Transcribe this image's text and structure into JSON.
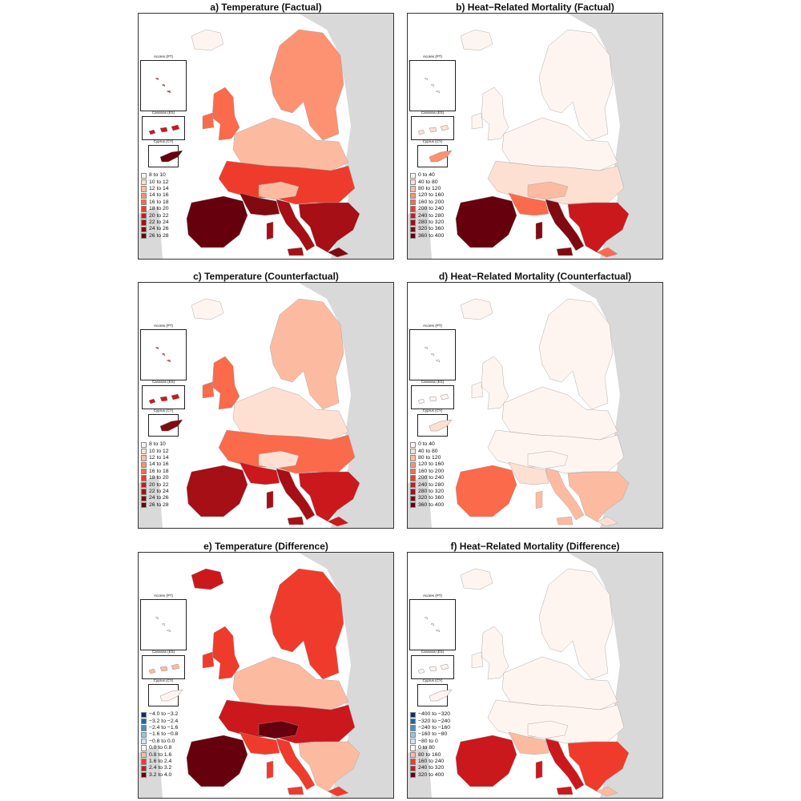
{
  "insets": {
    "azores": "Acores (PT)",
    "canarias": "Canarias (ES)",
    "cyprus": "Cyprus (CY)"
  },
  "legends": {
    "temperature": [
      "8 to 10",
      "10 to 12",
      "12 to 14",
      "14 to 16",
      "16 to 18",
      "18 to 20",
      "20 to 22",
      "22 to 24",
      "24 to 26",
      "26 to 28"
    ],
    "mortality": [
      "0 to 40",
      "40 to 80",
      "80 to 120",
      "120 to 160",
      "160 to 200",
      "200 to 240",
      "240 to 280",
      "280 to 320",
      "320 to 360",
      "360 to 400"
    ],
    "temp_difference": [
      "−4.0 to −3.2",
      "−3.2 to −2.4",
      "−2.4 to −1.6",
      "−1.6 to −0.8",
      "−0.8 to 0.0",
      "0.0 to 0.8",
      "0.8 to 1.6",
      "1.6 to 2.4",
      "2.4 to 3.2",
      "3.2 to 4.0"
    ],
    "mort_difference": [
      "−400 to −320",
      "−320 to −240",
      "−240 to −160",
      "−160 to −80",
      "−80 to 0",
      "0 to 80",
      "80 to 160",
      "160 to 240",
      "240 to 320",
      "320 to 400"
    ]
  },
  "colors": {
    "reds": [
      "#fff5f0",
      "#fee0d2",
      "#fcbba1",
      "#fc9272",
      "#fb6a4a",
      "#ef3b2c",
      "#cb181d",
      "#a50f15",
      "#800a10",
      "#67000d"
    ],
    "diverging": [
      "#08306b",
      "#2166ac",
      "#4393c3",
      "#92c5de",
      "#d1e5f0",
      "#fff5f0",
      "#fcbba1",
      "#ef3b2c",
      "#cb181d",
      "#67000d"
    ],
    "land_outside": "#d9d9d9",
    "sea": "#ffffff"
  },
  "panels": [
    {
      "id": "a",
      "title": "a) Temperature (Factual)",
      "legend": "temperature",
      "palette": "reds",
      "intensity": {
        "north": 2,
        "central": 5,
        "south": 8,
        "iberia": 9,
        "italy": 7,
        "balkans": 7,
        "britain": 4,
        "scand": 3,
        "iceland": 0,
        "alps": 2,
        "inset_canarias": 6,
        "inset_cyprus": 9,
        "inset_azores": 5
      }
    },
    {
      "id": "b",
      "title": "b) Heat−Related Mortality (Factual)",
      "legend": "mortality",
      "palette": "reds",
      "intensity": {
        "north": 0,
        "central": 1,
        "south": 4,
        "iberia": 9,
        "italy": 8,
        "balkans": 6,
        "britain": 0,
        "scand": 0,
        "iceland": 0,
        "alps": 2,
        "inset_canarias": 1,
        "inset_cyprus": 3,
        "inset_azores": 0
      }
    },
    {
      "id": "c",
      "title": "c) Temperature (Counterfactual)",
      "legend": "temperature",
      "palette": "reds",
      "intensity": {
        "north": 1,
        "central": 4,
        "south": 6,
        "iberia": 7,
        "italy": 7,
        "balkans": 6,
        "britain": 4,
        "scand": 2,
        "iceland": 0,
        "alps": 1,
        "inset_canarias": 6,
        "inset_cyprus": 8,
        "inset_azores": 5
      }
    },
    {
      "id": "d",
      "title": "d) Heat−Related Mortality (Counterfactual)",
      "legend": "mortality",
      "palette": "reds",
      "intensity": {
        "north": 0,
        "central": 0,
        "south": 1,
        "iberia": 4,
        "italy": 2,
        "balkans": 2,
        "britain": 0,
        "scand": 0,
        "iceland": 0,
        "alps": 0,
        "inset_canarias": 0,
        "inset_cyprus": 1,
        "inset_azores": 0
      }
    },
    {
      "id": "e",
      "title": "e) Temperature (Difference)",
      "legend": "temp_difference",
      "palette": "diverging",
      "intensity": {
        "north": 6,
        "central": 8,
        "south": 7,
        "iberia": 9,
        "italy": 7,
        "balkans": 6,
        "britain": 7,
        "scand": 7,
        "iceland": 8,
        "alps": 9,
        "inset_canarias": 6,
        "inset_cyprus": 5,
        "inset_azores": 5
      }
    },
    {
      "id": "f",
      "title": "f) Heat−Related Mortality (Difference)",
      "legend": "mort_difference",
      "palette": "diverging",
      "intensity": {
        "north": 5,
        "central": 5,
        "south": 6,
        "iberia": 8,
        "italy": 8,
        "balkans": 7,
        "britain": 5,
        "scand": 5,
        "iceland": 5,
        "alps": 5,
        "inset_canarias": 5,
        "inset_cyprus": 5,
        "inset_azores": 5
      }
    }
  ]
}
